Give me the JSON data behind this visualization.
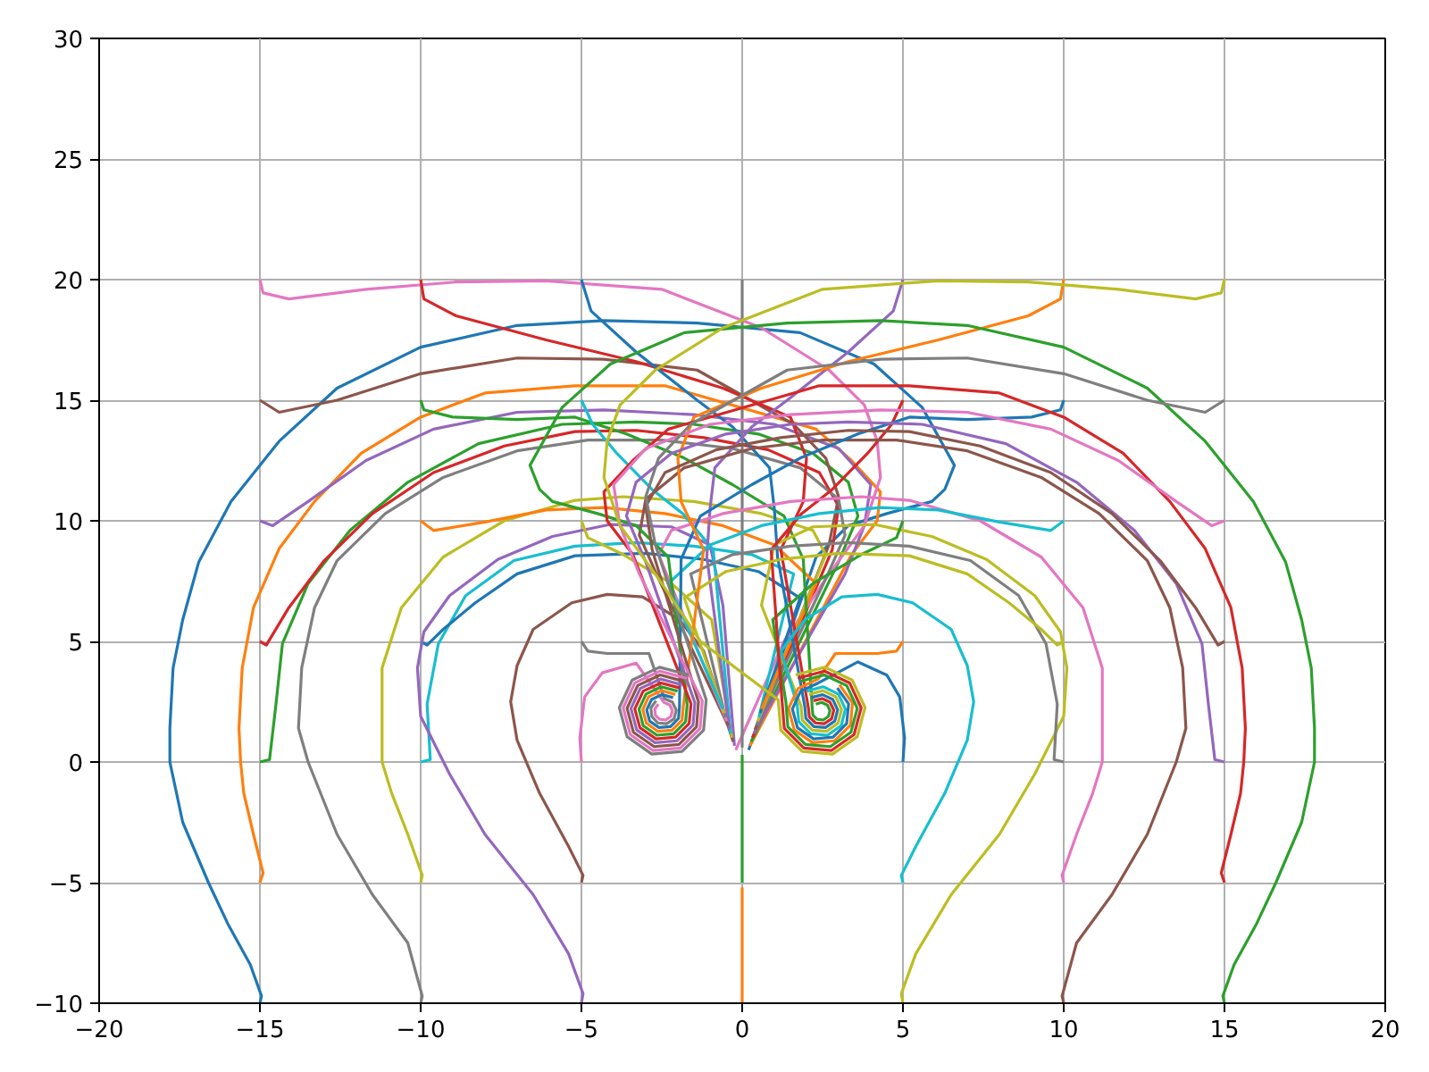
{
  "chart_data": {
    "type": "line",
    "xlim": [
      -20,
      20
    ],
    "ylim": [
      -10,
      30
    ],
    "xticks": [
      -20,
      -15,
      -10,
      -5,
      0,
      5,
      10,
      15,
      20
    ],
    "yticks": [
      -10,
      -5,
      0,
      5,
      10,
      15,
      20,
      25,
      30
    ],
    "grid": true,
    "series": [
      {
        "color": "#1f77b4",
        "x": [
          -15,
          -14.95,
          -15.3,
          -16.0,
          -16.6,
          -17.4,
          -17.8,
          -17.8,
          -17.7,
          -17.4,
          -16.9,
          -15.9,
          -14.4,
          -12.6,
          -10,
          -7.0,
          -4.3,
          -1.4,
          1.8,
          4.1,
          5.6,
          6.6,
          6.3,
          5.9,
          4.5,
          3.3,
          2.3,
          0.2
        ],
        "values": [
          -10,
          -9.7,
          -8.4,
          -6.7,
          -5.0,
          -2.5,
          0,
          1.4,
          3.9,
          5.9,
          8.3,
          10.8,
          13.3,
          15.5,
          17.2,
          18.1,
          18.3,
          18.2,
          17.8,
          16.5,
          14.7,
          12.3,
          11.3,
          10.8,
          10.3,
          9.8,
          8.5,
          0.5
        ]
      },
      {
        "color": "#ff7f0e",
        "x": [
          -15,
          -14.9,
          -15.2,
          -15.5,
          -15.6,
          -15.65,
          -15.55,
          -15.2,
          -14.4,
          -13.3,
          -11.85,
          -10,
          -8.0,
          -5.2,
          -2.4,
          2.3,
          3.4,
          4.3,
          4.2,
          3.4,
          0.24
        ],
        "values": [
          -5,
          -4.6,
          -3.0,
          -1.3,
          0,
          1.4,
          3.9,
          6.4,
          8.85,
          10.8,
          12.8,
          14.3,
          15.3,
          15.6,
          15.6,
          13.8,
          12.5,
          11.2,
          10.0,
          8.6,
          0.67
        ]
      },
      {
        "color": "#2ca02c",
        "x": [
          -15,
          -14.7,
          -14.5,
          -14.3,
          -13.5,
          -12.2,
          -10.4,
          -8.2,
          -5.6,
          -3.3,
          -1.5,
          0.5,
          2.2,
          3.3,
          3.6,
          3.0,
          0.28
        ],
        "values": [
          0,
          0.1,
          2.4,
          4.9,
          7.4,
          9.6,
          11.6,
          13.2,
          14.0,
          14.1,
          14.0,
          13.6,
          12.8,
          11.6,
          10.2,
          8.3,
          0.84
        ]
      },
      {
        "color": "#d62728",
        "x": [
          -15,
          -14.8,
          -14.1,
          -13.0,
          -11.5,
          -9.6,
          -7.4,
          -5.2,
          -3.3,
          -1.2,
          0.8,
          2.4,
          3.0,
          2.8,
          0.32
        ],
        "values": [
          5,
          4.85,
          6.4,
          8.35,
          10.3,
          12.0,
          13.1,
          13.7,
          13.75,
          13.45,
          12.95,
          12.0,
          10.6,
          8.8,
          1.01
        ]
      },
      {
        "color": "#9467bd",
        "x": [
          -15,
          -14.6,
          -13.5,
          -11.7,
          -9.6,
          -7.0,
          -4.3,
          -1.5,
          1.0,
          3.0,
          4.0,
          3.8,
          3.2,
          0.36
        ],
        "values": [
          10,
          9.8,
          10.8,
          12.5,
          13.8,
          14.5,
          14.6,
          14.4,
          14.0,
          13.0,
          11.5,
          9.8,
          7.8,
          1.18
        ]
      },
      {
        "color": "#8c564b",
        "x": [
          -15,
          -14.4,
          -12.6,
          -10,
          -7.0,
          -4.3,
          -1.4,
          1.6,
          2.6,
          3.0,
          2.7,
          0.4
        ],
        "values": [
          15,
          14.5,
          15.0,
          16.1,
          16.75,
          16.7,
          16.25,
          14.0,
          12.6,
          11.0,
          9.0,
          1.35
        ]
      },
      {
        "color": "#e377c2",
        "x": [
          -15,
          -14.9,
          -14.1,
          -11.7,
          -8.9,
          -6.1,
          -2.5,
          0.6,
          2.7,
          3.8,
          4.2,
          4.3,
          3.8,
          2.6,
          1.3,
          -0.2
        ],
        "values": [
          20,
          19.45,
          19.2,
          19.6,
          19.9,
          19.95,
          19.6,
          18.0,
          16.25,
          14.8,
          13.3,
          11.8,
          9.8,
          7.6,
          5.0,
          0.5
        ]
      },
      {
        "color": "#7f7f7f",
        "x": [
          -10,
          -9.95,
          -10.4,
          -11.5,
          -12.6,
          -13.5,
          -13.8,
          -13.7,
          -13.3,
          -12.6,
          -11.1,
          -9.3,
          -7.0,
          -4.8,
          -2.5,
          -0.3,
          1.8,
          3.0,
          3.2,
          2.6,
          0.44
        ],
        "values": [
          -10,
          -9.7,
          -7.5,
          -5.5,
          -3.0,
          0,
          1.4,
          3.9,
          6.4,
          8.35,
          10.3,
          11.8,
          12.9,
          13.35,
          13.35,
          13.0,
          12.2,
          10.9,
          9.4,
          7.6,
          1.52
        ]
      },
      {
        "color": "#bcbd22",
        "x": [
          -10,
          -9.95,
          -10.4,
          -10.9,
          -11.2,
          -11.2,
          -11.2,
          -10.6,
          -9.3,
          -7.4,
          -5.2,
          -3.7,
          -1.5,
          0.6,
          2.2,
          2.6,
          0.48
        ],
        "values": [
          -5,
          -4.7,
          -3.0,
          -1.3,
          0,
          1.4,
          3.9,
          6.4,
          8.5,
          10.0,
          10.85,
          11.0,
          10.8,
          10.3,
          9.6,
          8.6,
          1.69
        ]
      },
      {
        "color": "#17becf",
        "x": [
          -10,
          -9.7,
          -9.8,
          -9.45,
          -8.6,
          -7.1,
          -5.2,
          -3.3,
          -1.5,
          0.3,
          1.6,
          0.52
        ],
        "values": [
          0,
          0.1,
          2.4,
          4.9,
          6.9,
          8.35,
          8.95,
          9.1,
          8.95,
          8.6,
          7.8,
          1.86
        ]
      },
      {
        "color": "#1f77b4",
        "x": [
          -10,
          -9.8,
          -9.3,
          -8.3,
          -7.0,
          -5.2,
          -3.0,
          -1.2,
          0.5,
          1.8,
          0.56
        ],
        "values": [
          5,
          4.85,
          5.5,
          6.6,
          7.8,
          8.55,
          8.65,
          8.4,
          7.9,
          6.8,
          2.03
        ]
      },
      {
        "color": "#ff7f0e",
        "x": [
          -10,
          -9.6,
          -8.0,
          -6.1,
          -4.3,
          -2.4,
          -0.6,
          1.0,
          2.3,
          0.6
        ],
        "values": [
          10,
          9.6,
          9.95,
          10.45,
          10.55,
          10.3,
          9.8,
          9.0,
          7.4,
          2.2
        ]
      },
      {
        "color": "#2ca02c",
        "x": [
          -10,
          -9.9,
          -9.0,
          -7.0,
          -5.2,
          -3.6,
          -1.8,
          -0.3,
          1.3,
          1.9,
          2.18,
          2.2,
          2.33,
          2.52,
          2.68,
          2.73,
          2.65,
          2.47,
          2.29
        ],
        "values": [
          15,
          14.6,
          14.3,
          14.2,
          14.3,
          13.6,
          12.6,
          11.5,
          10.2,
          8.4,
          2.2,
          1.94,
          1.77,
          1.74,
          1.89,
          2.13,
          2.36,
          2.47,
          2.4
        ]
      },
      {
        "color": "#d62728",
        "x": [
          -10,
          -9.9,
          -8.9,
          -6.1,
          -3.3,
          -0.6,
          1.5,
          2.0,
          1.9,
          1.2,
          2.06,
          2.09,
          2.28,
          2.55,
          2.78,
          2.85,
          2.73,
          2.49,
          2.22
        ],
        "values": [
          20,
          19.2,
          18.5,
          17.5,
          16.6,
          15.5,
          14.3,
          12.6,
          10.8,
          8.8,
          2.24,
          1.87,
          1.62,
          1.59,
          1.79,
          2.15,
          2.48,
          2.63,
          2.54
        ]
      },
      {
        "color": "#9467bd",
        "x": [
          -5,
          -4.95,
          -5.4,
          -6.5,
          -8.0,
          -9.1,
          -10.0,
          -10.1,
          -9.9,
          -9.1,
          -7.6,
          -5.9,
          -4.1,
          -2.2,
          -1.0,
          -0.6,
          -0.24
        ],
        "values": [
          -10,
          -9.6,
          -7.95,
          -5.5,
          -3.0,
          -0.5,
          1.9,
          3.9,
          5.4,
          6.9,
          8.4,
          9.35,
          9.85,
          9.75,
          9.0,
          6.5,
          0.67
        ]
      },
      {
        "color": "#8c564b",
        "x": [
          -5,
          -4.95,
          -5.4,
          -6.3,
          -7.0,
          -7.2,
          -7.0,
          -6.5,
          -5.3,
          -4.2,
          -3.1,
          -1.95,
          -1.2,
          -0.28
        ],
        "values": [
          -5,
          -4.7,
          -3.5,
          -1.3,
          0.9,
          2.5,
          4.0,
          5.5,
          6.6,
          6.95,
          6.85,
          5.9,
          4.6,
          0.84
        ]
      },
      {
        "color": "#e377c2",
        "x": [
          -5,
          -5.05,
          -4.9,
          -4.35,
          -3.3,
          -2.43,
          -2.25,
          -2.17,
          -2.22,
          -2.38,
          -2.57,
          -2.7,
          -2.72,
          -2.61
        ],
        "values": [
          0,
          1.0,
          2.7,
          3.7,
          4.1,
          2.47,
          2.36,
          2.13,
          1.89,
          1.74,
          1.77,
          1.94,
          2.2,
          2.4
        ]
      },
      {
        "color": "#7f7f7f",
        "x": [
          -5,
          -4.8,
          -4.2,
          -2.9,
          -2.42,
          -2.17,
          -2.05,
          -2.12,
          -2.35,
          -2.62,
          -2.81,
          -2.84,
          -2.68
        ],
        "values": [
          5,
          4.6,
          4.5,
          4.5,
          2.63,
          2.48,
          2.15,
          1.79,
          1.59,
          1.62,
          1.88,
          2.24,
          2.54
        ]
      },
      {
        "color": "#bcbd22",
        "x": [
          -5,
          -4.8,
          -3.7,
          -2.2,
          -0.95,
          -0.32
        ],
        "values": [
          10,
          9.3,
          8.6,
          7.4,
          5.9,
          1.01
        ]
      },
      {
        "color": "#17becf",
        "x": [
          -5,
          -4.65,
          -3.9,
          -2.8,
          -1.85,
          -0.9,
          -0.36
        ],
        "values": [
          15,
          14.0,
          12.8,
          11.3,
          10.3,
          8.8,
          1.18
        ]
      },
      {
        "color": "#1f77b4",
        "x": [
          -5,
          -4.7,
          -3.3,
          -1.4,
          -0.3,
          0.85,
          1.0,
          1.1,
          1.95,
          1.98,
          2.23,
          2.59,
          2.88,
          2.97,
          2.82,
          2.5,
          2.15
        ],
        "values": [
          20,
          18.7,
          17.0,
          15.0,
          13.9,
          12.2,
          10.5,
          8.5,
          2.28,
          1.81,
          1.47,
          1.43,
          1.7,
          2.16,
          2.59,
          2.79,
          2.67
        ]
      },
      {
        "color": "#ff7f0e",
        "x": [
          0,
          0
        ],
        "values": [
          -10,
          -5.2
        ]
      },
      {
        "color": "#2ca02c",
        "x": [
          0,
          0
        ],
        "values": [
          -5,
          0.3
        ]
      },
      {
        "color": "#7f7f7f",
        "x": [
          0,
          0
        ],
        "values": [
          20,
          0.6
        ]
      },
      {
        "color": "#bcbd22",
        "x": [
          5,
          4.95,
          5.4,
          6.5,
          8.0,
          9.1,
          10.0,
          10.1,
          9.9,
          9.1,
          7.6,
          5.9,
          4.1,
          2.2,
          1.0,
          0.6,
          1.83,
          1.87,
          2.18,
          2.62,
          2.98,
          3.09,
          2.91,
          2.51,
          2.08
        ],
        "values": [
          -10,
          -9.6,
          -7.95,
          -5.5,
          -3.0,
          -0.5,
          1.9,
          3.9,
          5.4,
          6.9,
          8.4,
          9.35,
          9.85,
          9.75,
          9.0,
          6.5,
          2.32,
          1.74,
          1.32,
          1.27,
          1.61,
          2.18,
          2.71,
          2.96,
          2.8
        ]
      },
      {
        "color": "#17becf",
        "x": [
          5,
          4.95,
          5.4,
          6.3,
          7.0,
          7.2,
          7.0,
          6.5,
          5.3,
          4.2,
          3.1,
          1.95,
          1.2,
          1.71,
          1.76,
          2.13,
          2.65,
          3.08,
          3.21,
          2.99,
          2.52,
          2.01
        ],
        "values": [
          -5,
          -4.7,
          -3.5,
          -1.3,
          0.9,
          2.5,
          4.0,
          5.5,
          6.6,
          6.95,
          6.85,
          5.9,
          4.6,
          2.37,
          1.67,
          1.17,
          1.11,
          1.51,
          2.19,
          2.82,
          3.12,
          2.94
        ]
      },
      {
        "color": "#1f77b4",
        "x": [
          5,
          5.05,
          4.9,
          4.5,
          3.6,
          2.37,
          1.82,
          1.56,
          1.72,
          2.22,
          2.83,
          3.25,
          3.31,
          2.96
        ],
        "values": [
          0,
          1.0,
          2.7,
          3.6,
          4.15,
          3.28,
          2.94,
          2.2,
          1.42,
          0.96,
          1.03,
          1.6,
          2.41,
          3.07
        ]
      },
      {
        "color": "#ff7f0e",
        "x": [
          5,
          4.8,
          4.2,
          2.9,
          2.36,
          1.74,
          1.44,
          1.62,
          2.19,
          2.88,
          3.37,
          3.43,
          3.03
        ],
        "values": [
          5,
          4.6,
          4.5,
          4.5,
          3.44,
          3.05,
          2.22,
          1.33,
          0.8,
          0.88,
          1.53,
          2.45,
          3.2
        ]
      },
      {
        "color": "#2ca02c",
        "x": [
          5,
          4.8,
          3.7,
          2.2,
          0.95,
          1.36,
          1.42,
          1.97,
          2.74,
          3.38,
          3.58,
          3.25,
          2.55,
          1.8
        ],
        "values": [
          10,
          9.3,
          8.6,
          7.4,
          5.9,
          2.49,
          1.46,
          0.73,
          0.64,
          1.23,
          2.23,
          3.17,
          3.61,
          3.34
        ]
      },
      {
        "color": "#d62728",
        "x": [
          5,
          4.65,
          3.9,
          2.8,
          1.85,
          0.9,
          1.24,
          1.31,
          1.92,
          2.78,
          3.48,
          3.7,
          3.34,
          2.56,
          1.73
        ],
        "values": [
          15,
          14.0,
          12.8,
          11.3,
          10.3,
          8.8,
          2.53,
          1.39,
          0.58,
          0.48,
          1.14,
          2.25,
          3.28,
          3.77,
          3.47
        ]
      },
      {
        "color": "#9467bd",
        "x": [
          5,
          4.7,
          3.3,
          1.4,
          0.3,
          -0.85,
          -1.0,
          -1.1,
          -0.4
        ],
        "values": [
          20,
          18.7,
          17.0,
          15.0,
          13.9,
          12.2,
          10.5,
          8.5,
          1.35
        ]
      },
      {
        "color": "#8c564b",
        "x": [
          10,
          9.95,
          10.4,
          11.5,
          12.6,
          13.5,
          13.8,
          13.7,
          13.3,
          12.6,
          11.1,
          9.3,
          7.0,
          4.8,
          2.5,
          0.3,
          -1.8,
          -3.0,
          -3.2,
          -2.6,
          -0.44
        ],
        "values": [
          -10,
          -9.7,
          -7.5,
          -5.5,
          -3.0,
          0,
          1.4,
          3.9,
          6.4,
          8.35,
          10.3,
          11.8,
          12.9,
          13.35,
          13.35,
          13.0,
          12.2,
          10.9,
          9.4,
          7.6,
          1.52
        ]
      },
      {
        "color": "#e377c2",
        "x": [
          10,
          9.95,
          10.4,
          10.9,
          11.2,
          11.2,
          11.2,
          10.6,
          9.3,
          7.4,
          5.2,
          3.7,
          1.5,
          -0.6,
          -2.2,
          -2.6,
          -0.48
        ],
        "values": [
          -5,
          -4.7,
          -3.0,
          -1.3,
          0,
          1.4,
          3.9,
          6.4,
          8.5,
          10.0,
          10.85,
          11.0,
          10.8,
          10.3,
          9.6,
          8.6,
          1.69
        ]
      },
      {
        "color": "#7f7f7f",
        "x": [
          10,
          9.7,
          9.8,
          9.45,
          8.6,
          7.1,
          5.2,
          3.3,
          1.5,
          -0.3,
          -1.6,
          -0.52
        ],
        "values": [
          0,
          0.1,
          2.4,
          4.9,
          6.9,
          8.35,
          8.95,
          9.1,
          8.95,
          8.6,
          7.8,
          1.86
        ]
      },
      {
        "color": "#bcbd22",
        "x": [
          10,
          9.8,
          9.3,
          8.3,
          7.0,
          5.2,
          3.0,
          1.2,
          -0.5,
          -1.8,
          -0.56
        ],
        "values": [
          5,
          4.85,
          5.5,
          6.6,
          7.8,
          8.55,
          8.65,
          8.4,
          7.9,
          6.8,
          2.03
        ]
      },
      {
        "color": "#17becf",
        "x": [
          10,
          9.6,
          8.0,
          6.1,
          4.3,
          2.4,
          0.6,
          -1.0,
          -2.3,
          -0.6
        ],
        "values": [
          10,
          9.6,
          9.95,
          10.45,
          10.55,
          10.3,
          9.8,
          9.0,
          7.4,
          2.2
        ]
      },
      {
        "color": "#1f77b4",
        "x": [
          10,
          9.9,
          9.0,
          7.0,
          5.2,
          3.6,
          1.8,
          0.3,
          -1.3,
          -1.9,
          -1.95,
          -1.98,
          -2.23,
          -2.59,
          -2.88,
          -2.97,
          -2.82,
          -2.5,
          -2.15
        ],
        "values": [
          15,
          14.6,
          14.3,
          14.2,
          14.3,
          13.6,
          12.6,
          11.5,
          10.2,
          8.4,
          2.28,
          1.81,
          1.47,
          1.43,
          1.7,
          2.16,
          2.59,
          2.79,
          2.67
        ]
      },
      {
        "color": "#ff7f0e",
        "x": [
          10,
          9.9,
          8.9,
          6.1,
          3.3,
          0.6,
          -1.5,
          -2.0,
          -1.9,
          -1.2,
          -1.83,
          -1.87,
          -2.18,
          -2.62,
          -2.98,
          -3.09,
          -2.91,
          -2.51,
          -2.08
        ],
        "values": [
          20,
          19.2,
          18.5,
          17.5,
          16.6,
          15.5,
          14.3,
          12.6,
          10.8,
          8.8,
          2.32,
          1.74,
          1.32,
          1.27,
          1.61,
          2.18,
          2.71,
          2.96,
          2.8
        ]
      },
      {
        "color": "#2ca02c",
        "x": [
          15,
          14.95,
          15.3,
          16.0,
          16.6,
          17.4,
          17.8,
          17.8,
          17.7,
          17.4,
          16.9,
          15.9,
          14.4,
          12.6,
          10,
          7.0,
          4.3,
          1.4,
          -1.8,
          -4.1,
          -5.6,
          -6.6,
          -6.3,
          -5.9,
          -4.5,
          -3.3,
          -2.3,
          -1.71,
          -1.76,
          -2.13,
          -2.65,
          -3.08,
          -3.21,
          -2.99,
          -2.52,
          -2.01
        ],
        "values": [
          -10,
          -9.7,
          -8.4,
          -6.7,
          -5.0,
          -2.5,
          0,
          1.4,
          3.9,
          5.9,
          8.3,
          10.8,
          13.3,
          15.5,
          17.2,
          18.1,
          18.3,
          18.2,
          17.8,
          16.5,
          14.7,
          12.3,
          11.3,
          10.8,
          10.3,
          9.8,
          8.5,
          2.37,
          1.67,
          1.17,
          1.11,
          1.51,
          2.19,
          2.82,
          3.12,
          2.94
        ]
      },
      {
        "color": "#d62728",
        "x": [
          15,
          14.9,
          15.2,
          15.5,
          15.6,
          15.65,
          15.55,
          15.2,
          14.4,
          13.3,
          11.85,
          10,
          8.0,
          5.2,
          2.4,
          -2.3,
          -3.4,
          -4.3,
          -4.2,
          -3.4,
          -1.59,
          -1.65,
          -2.07,
          -2.68,
          -3.18,
          -3.34,
          -3.08,
          -2.53,
          -1.94
        ],
        "values": [
          -5,
          -4.6,
          -3.0,
          -1.3,
          0,
          1.4,
          3.9,
          6.4,
          8.85,
          10.8,
          12.8,
          14.3,
          15.3,
          15.6,
          15.6,
          13.8,
          12.5,
          11.2,
          10.0,
          8.6,
          2.41,
          1.6,
          1.03,
          0.96,
          1.42,
          2.2,
          2.94,
          3.28,
          3.07
        ]
      },
      {
        "color": "#9467bd",
        "x": [
          15,
          14.7,
          14.5,
          14.3,
          13.5,
          12.2,
          10.4,
          8.2,
          5.6,
          3.3,
          1.5,
          -0.5,
          -2.2,
          -3.3,
          -3.6,
          -3.0,
          -1.47,
          -1.53,
          -2.02,
          -2.71,
          -3.28,
          -3.46,
          -3.17,
          -2.54,
          -1.87
        ],
        "values": [
          0,
          0.1,
          2.4,
          4.9,
          7.4,
          9.6,
          11.6,
          13.2,
          14.0,
          14.1,
          14.0,
          13.6,
          12.8,
          11.6,
          10.2,
          8.3,
          2.45,
          1.53,
          0.88,
          0.8,
          1.33,
          2.22,
          3.05,
          3.44,
          3.2
        ]
      },
      {
        "color": "#8c564b",
        "x": [
          15,
          14.8,
          14.1,
          13.0,
          11.5,
          9.6,
          7.4,
          5.2,
          3.3,
          1.2,
          -0.8,
          -2.4,
          -3.0,
          -2.8,
          -1.36,
          -1.42,
          -1.97,
          -2.74,
          -3.38,
          -3.58,
          -3.25,
          -2.55,
          -1.8
        ],
        "values": [
          5,
          4.85,
          6.4,
          8.35,
          10.3,
          12.0,
          13.1,
          13.7,
          13.75,
          13.45,
          12.95,
          12.0,
          10.6,
          8.8,
          2.49,
          1.46,
          0.73,
          0.64,
          1.23,
          2.23,
          3.17,
          3.61,
          3.34
        ]
      },
      {
        "color": "#e377c2",
        "x": [
          15,
          14.6,
          13.5,
          11.7,
          9.6,
          7.0,
          4.3,
          1.5,
          -1.0,
          -3.0,
          -4.0,
          -3.8,
          -3.2,
          -1.24,
          -1.31,
          -1.92,
          -2.78,
          -3.48,
          -3.7,
          -3.34,
          -2.56,
          -1.73
        ],
        "values": [
          10,
          9.8,
          10.8,
          12.5,
          13.8,
          14.5,
          14.6,
          14.4,
          14.0,
          13.0,
          11.5,
          9.8,
          7.8,
          2.53,
          1.39,
          0.58,
          0.48,
          1.14,
          2.25,
          3.28,
          3.77,
          3.47
        ]
      },
      {
        "color": "#7f7f7f",
        "x": [
          15,
          14.4,
          12.6,
          10,
          7.0,
          4.3,
          1.4,
          -1.6,
          -2.6,
          -3.0,
          -2.7,
          -1.12,
          -1.2,
          -1.87,
          -2.81,
          -3.58,
          -3.82,
          -3.42,
          -2.57,
          -1.66
        ],
        "values": [
          15,
          14.5,
          15.0,
          16.1,
          16.75,
          16.7,
          16.25,
          14.0,
          12.6,
          11.0,
          9.0,
          2.58,
          1.32,
          0.44,
          0.33,
          1.05,
          2.26,
          3.4,
          3.93,
          3.61
        ]
      },
      {
        "color": "#bcbd22",
        "x": [
          15,
          14.9,
          14.1,
          11.7,
          8.9,
          6.1,
          2.5,
          -0.6,
          -2.7,
          -3.8,
          -4.2,
          -4.3,
          -3.8,
          -2.6,
          -1.3,
          1.12,
          1.2,
          1.87,
          2.81,
          3.58,
          3.82,
          3.42,
          2.57,
          1.66
        ],
        "values": [
          20,
          19.45,
          19.2,
          19.6,
          19.9,
          19.95,
          19.6,
          18.0,
          16.25,
          14.8,
          13.3,
          11.8,
          9.8,
          7.6,
          5.0,
          2.58,
          1.32,
          0.44,
          0.33,
          1.05,
          2.26,
          3.4,
          3.93,
          3.61
        ]
      }
    ]
  }
}
